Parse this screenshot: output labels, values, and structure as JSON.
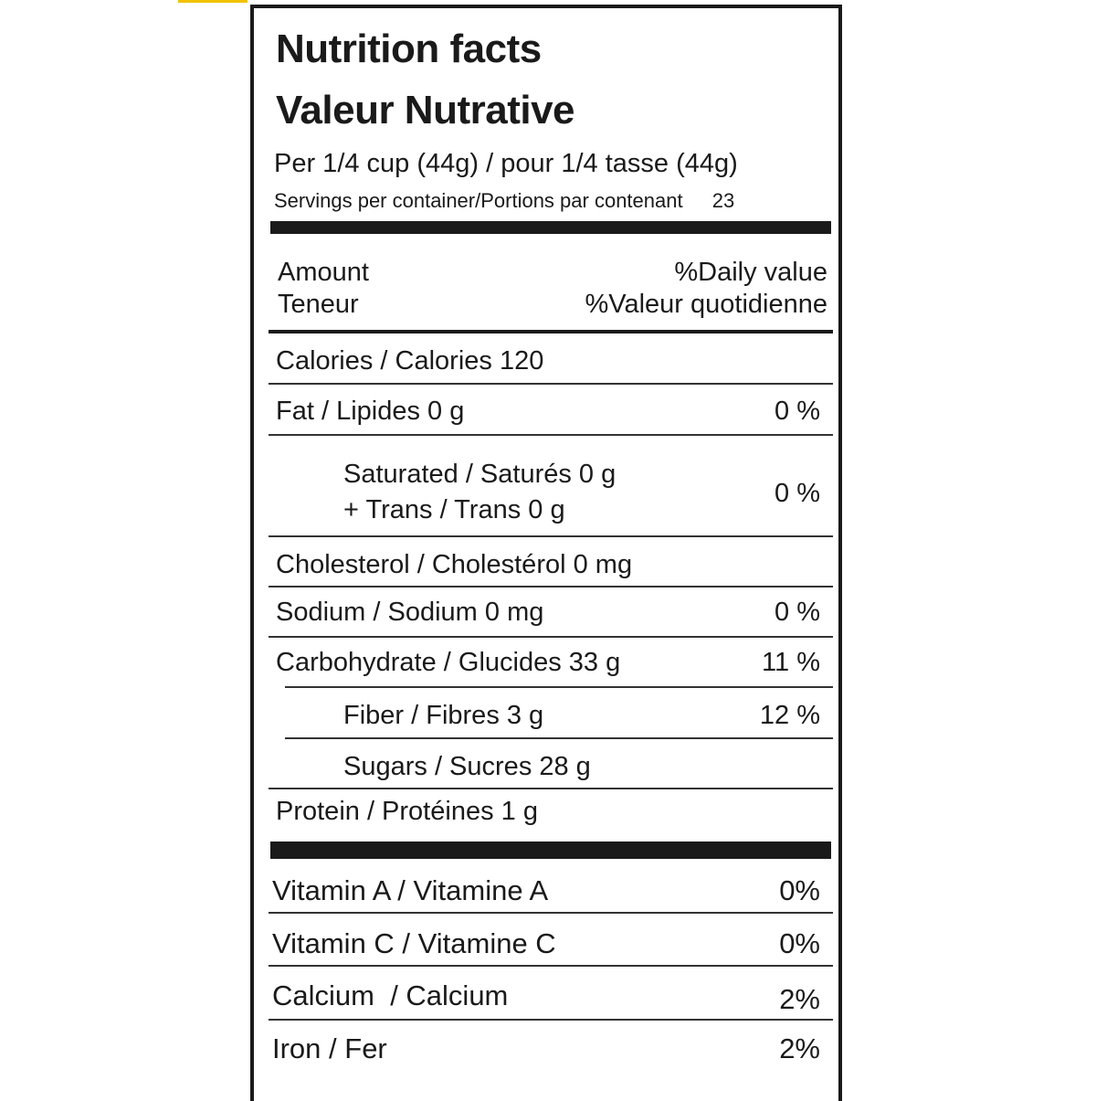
{
  "title_en": "Nutrition facts",
  "title_fr": "Valeur Nutrative",
  "serving_size": "Per 1/4 cup (44g) / pour 1/4 tasse (44g)",
  "servings_label": "Servings per container/Portions par contenant",
  "servings_value": "23",
  "header": {
    "amount": "Amount",
    "teneur": "Teneur",
    "dv_en": "%Daily value",
    "dv_fr": "%Valeur quotidienne"
  },
  "nutrients": {
    "calories": {
      "label": "Calories / Calories 120"
    },
    "fat": {
      "label": "Fat / Lipides 0 g",
      "dv": "0 %"
    },
    "saturated": {
      "label": "Saturated / Saturés 0 g",
      "label2": "+ Trans / Trans 0 g",
      "dv": "0 %"
    },
    "cholesterol": {
      "label": "Cholesterol / Cholestérol 0 mg"
    },
    "sodium": {
      "label": "Sodium / Sodium 0 mg",
      "dv": "0 %"
    },
    "carbohydrate": {
      "label": "Carbohydrate / Glucides 33 g",
      "dv": "11 %"
    },
    "fiber": {
      "label": "Fiber / Fibres 3 g",
      "dv": "12 %"
    },
    "sugars": {
      "label": "Sugars / Sucres 28 g"
    },
    "protein": {
      "label": "Protein / Protéines 1 g"
    }
  },
  "vitamins": [
    {
      "label": "Vitamin A / Vitamine A",
      "dv": "0%"
    },
    {
      "label": "Vitamin C / Vitamine C",
      "dv": "0%"
    },
    {
      "label": "Calcium  / Calcium",
      "dv": "2%"
    },
    {
      "label": "Iron / Fer",
      "dv": "2%"
    }
  ],
  "colors": {
    "ink": "#1a1a1a",
    "accent_strip": "#f2c200"
  }
}
